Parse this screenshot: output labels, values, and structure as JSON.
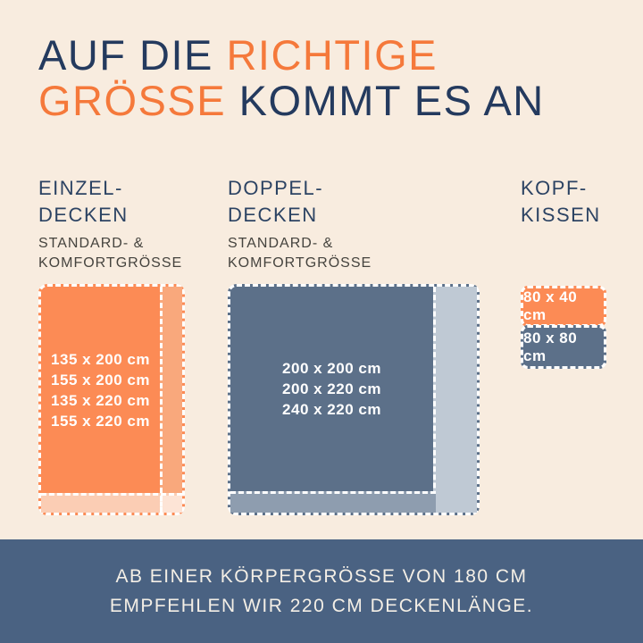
{
  "title": {
    "part1": "AUF DIE ",
    "part2": "RICHTIGE",
    "part3": "GRÖSSE ",
    "part4": "KOMMT ES AN"
  },
  "columns": {
    "single": {
      "heading1": "EINZEL-",
      "heading2": "DECKEN",
      "sub1": "STANDARD- &",
      "sub2": "KOMFORTGRÖSSE",
      "sizes": [
        "135 x 200 cm",
        "155 x 200 cm",
        "135 x 220 cm",
        "155 x 220 cm"
      ]
    },
    "double": {
      "heading1": "DOPPEL-",
      "heading2": "DECKEN",
      "sub1": "STANDARD- &",
      "sub2": "KOMFORTGRÖSSE",
      "sizes": [
        "200 x 200 cm",
        "200 x 220 cm",
        "240 x 220 cm"
      ]
    },
    "pillow": {
      "heading1": "KOPF-",
      "heading2": "KISSEN",
      "sizes": [
        "80 x 40 cm",
        "80 x 80 cm"
      ]
    }
  },
  "footer": {
    "line1": "AB EINER KÖRPERGRÖSSE VON 180 CM",
    "line2": "EMPFEHLEN WIR 220 CM DECKENLÄNGE."
  },
  "colors": {
    "background": "#F8ECDF",
    "title_navy": "#243A5E",
    "title_orange": "#F5793B",
    "heading_navy": "#2C4363",
    "subtitle_gray": "#45433E",
    "blanket_orange_main": "#FC8B55",
    "blanket_orange_wide_strip": "#F9A87C",
    "blanket_orange_long_strip": "#FBCDB4",
    "blanket_orange_corner": "#FDE4D6",
    "blanket_slate_main": "#5C7089",
    "blanket_slate_wide_strip": "#BFC9D4",
    "blanket_slate_long_strip": "#8E9DAF",
    "footer_background": "#4A6282",
    "footer_text": "#F4EFE6",
    "size_label_text": "#FFFFFF"
  }
}
